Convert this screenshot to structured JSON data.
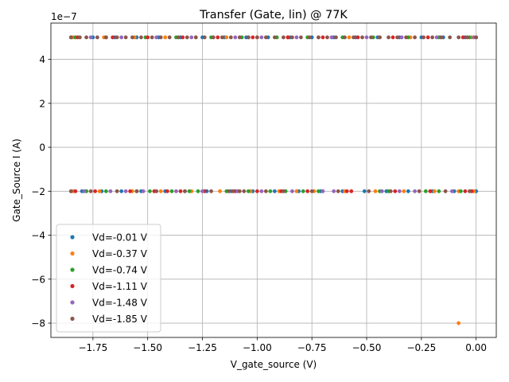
{
  "chart_data": {
    "type": "scatter",
    "title": "Transfer (Gate, lin) @ 77K",
    "xlabel": "V_gate_source (V)",
    "ylabel": "Gate_Source I (A)",
    "y_offset_label": "1e−7",
    "y_scale_exponent": -7,
    "xlim": [
      -1.942,
      0.092
    ],
    "ylim": [
      -8.65e-07,
      5.65e-07
    ],
    "grid": true,
    "legend_position": "lower-left",
    "x_ticks": [
      {
        "value": -1.75,
        "label": "−1.75"
      },
      {
        "value": -1.5,
        "label": "−1.50"
      },
      {
        "value": -1.25,
        "label": "−1.25"
      },
      {
        "value": -1.0,
        "label": "−1.00"
      },
      {
        "value": -0.75,
        "label": "−0.75"
      },
      {
        "value": -0.5,
        "label": "−0.50"
      },
      {
        "value": -0.25,
        "label": "−0.25"
      },
      {
        "value": 0.0,
        "label": "0.00"
      }
    ],
    "y_ticks": [
      {
        "value": 4e-07,
        "label": "4"
      },
      {
        "value": 2e-07,
        "label": "2"
      },
      {
        "value": 0,
        "label": "0"
      },
      {
        "value": -2e-07,
        "label": "−2"
      },
      {
        "value": -4e-07,
        "label": "−4"
      },
      {
        "value": -6e-07,
        "label": "−6"
      },
      {
        "value": -8e-07,
        "label": "−8"
      }
    ],
    "series": [
      {
        "name": "Vd=-0.01 V",
        "color": "#1f77b4",
        "points": [
          [
            -1.85,
            -2e-07
          ],
          [
            -1.8,
            -2e-07
          ],
          [
            -1.71,
            -2e-07
          ],
          [
            -1.62,
            -2e-07
          ],
          [
            -1.53,
            -2e-07
          ],
          [
            -1.42,
            -2e-07
          ],
          [
            -1.33,
            -2e-07
          ],
          [
            -1.23,
            -2e-07
          ],
          [
            -1.12,
            -2e-07
          ],
          [
            -1.02,
            -2e-07
          ],
          [
            -0.92,
            -2e-07
          ],
          [
            -0.81,
            -2e-07
          ],
          [
            -0.71,
            -2e-07
          ],
          [
            -0.61,
            -2e-07
          ],
          [
            -0.51,
            -2e-07
          ],
          [
            -0.41,
            -2e-07
          ],
          [
            -0.31,
            -2e-07
          ],
          [
            -0.2,
            -2e-07
          ],
          [
            -0.1,
            -2e-07
          ],
          [
            0.0,
            -2e-07
          ],
          [
            -1.85,
            5e-07
          ],
          [
            -1.75,
            5e-07
          ],
          [
            -1.65,
            5e-07
          ],
          [
            -1.55,
            5e-07
          ],
          [
            -1.45,
            5e-07
          ],
          [
            -1.35,
            5e-07
          ],
          [
            -1.25,
            5e-07
          ],
          [
            -1.15,
            5e-07
          ],
          [
            -1.05,
            5e-07
          ],
          [
            -0.95,
            5e-07
          ],
          [
            -0.85,
            5e-07
          ],
          [
            -0.75,
            5e-07
          ],
          [
            -0.65,
            5e-07
          ],
          [
            -0.55,
            5e-07
          ],
          [
            -0.45,
            5e-07
          ],
          [
            -0.35,
            5e-07
          ],
          [
            -0.25,
            5e-07
          ],
          [
            -0.15,
            5e-07
          ],
          [
            -0.05,
            5e-07
          ],
          [
            0.0,
            5e-07
          ]
        ]
      },
      {
        "name": "Vd=-0.37 V",
        "color": "#ff7f0e",
        "points": [
          [
            -1.84,
            -2e-07
          ],
          [
            -1.72,
            -2e-07
          ],
          [
            -1.57,
            -2e-07
          ],
          [
            -1.44,
            -2e-07
          ],
          [
            -1.3,
            -2e-07
          ],
          [
            -1.17,
            -2e-07
          ],
          [
            -1.03,
            -2e-07
          ],
          [
            -0.9,
            -2e-07
          ],
          [
            -0.82,
            -2e-07
          ],
          [
            -0.74,
            -2e-07
          ],
          [
            -0.6,
            -2e-07
          ],
          [
            -0.46,
            -2e-07
          ],
          [
            -0.33,
            -2e-07
          ],
          [
            -0.19,
            -2e-07
          ],
          [
            -0.08,
            -2e-07
          ],
          [
            -0.01,
            -2e-07
          ],
          [
            -0.08,
            -8e-07
          ],
          [
            -1.84,
            5e-07
          ],
          [
            -1.7,
            5e-07
          ],
          [
            -1.56,
            5e-07
          ],
          [
            -1.42,
            5e-07
          ],
          [
            -1.28,
            5e-07
          ],
          [
            -1.14,
            5e-07
          ],
          [
            -1.0,
            5e-07
          ],
          [
            -0.86,
            5e-07
          ],
          [
            -0.72,
            5e-07
          ],
          [
            -0.58,
            5e-07
          ],
          [
            -0.44,
            5e-07
          ],
          [
            -0.3,
            5e-07
          ],
          [
            -0.16,
            5e-07
          ],
          [
            -0.02,
            5e-07
          ]
        ]
      },
      {
        "name": "Vd=-0.74 V",
        "color": "#2ca02c",
        "points": [
          [
            -1.78,
            -2e-07
          ],
          [
            -1.69,
            -2e-07
          ],
          [
            -1.55,
            -2e-07
          ],
          [
            -1.49,
            -2e-07
          ],
          [
            -1.39,
            -2e-07
          ],
          [
            -1.31,
            -2e-07
          ],
          [
            -1.27,
            -2e-07
          ],
          [
            -1.14,
            -2e-07
          ],
          [
            -1.04,
            -2e-07
          ],
          [
            -0.94,
            -2e-07
          ],
          [
            -0.87,
            -2e-07
          ],
          [
            -0.79,
            -2e-07
          ],
          [
            -0.72,
            -2e-07
          ],
          [
            -0.44,
            -2e-07
          ],
          [
            -0.4,
            -2e-07
          ],
          [
            -0.23,
            -2e-07
          ],
          [
            -0.17,
            -2e-07
          ],
          [
            -0.07,
            -2e-07
          ],
          [
            -1.83,
            5e-07
          ],
          [
            -1.69,
            5e-07
          ],
          [
            -1.51,
            5e-07
          ],
          [
            -1.37,
            5e-07
          ],
          [
            -1.21,
            5e-07
          ],
          [
            -1.07,
            5e-07
          ],
          [
            -0.91,
            5e-07
          ],
          [
            -0.77,
            5e-07
          ],
          [
            -0.61,
            5e-07
          ],
          [
            -0.47,
            5e-07
          ],
          [
            -0.31,
            5e-07
          ],
          [
            -0.17,
            5e-07
          ],
          [
            -0.03,
            5e-07
          ]
        ]
      },
      {
        "name": "Vd=-1.11 V",
        "color": "#d62728",
        "points": [
          [
            -1.83,
            -2e-07
          ],
          [
            -1.74,
            -2e-07
          ],
          [
            -1.58,
            -2e-07
          ],
          [
            -1.47,
            -2e-07
          ],
          [
            -1.41,
            -2e-07
          ],
          [
            -1.35,
            -2e-07
          ],
          [
            -1.24,
            -2e-07
          ],
          [
            -1.1,
            -2e-07
          ],
          [
            -1.0,
            -2e-07
          ],
          [
            -0.89,
            -2e-07
          ],
          [
            -0.77,
            -2e-07
          ],
          [
            -0.59,
            -2e-07
          ],
          [
            -0.57,
            -2e-07
          ],
          [
            -0.37,
            -2e-07
          ],
          [
            -0.21,
            -2e-07
          ],
          [
            -0.05,
            -2e-07
          ],
          [
            -0.02,
            -2e-07
          ],
          [
            -1.82,
            5e-07
          ],
          [
            -1.66,
            5e-07
          ],
          [
            -1.5,
            5e-07
          ],
          [
            -1.34,
            5e-07
          ],
          [
            -1.18,
            5e-07
          ],
          [
            -1.02,
            5e-07
          ],
          [
            -0.86,
            5e-07
          ],
          [
            -0.7,
            5e-07
          ],
          [
            -0.54,
            5e-07
          ],
          [
            -0.38,
            5e-07
          ],
          [
            -0.22,
            5e-07
          ],
          [
            -0.06,
            5e-07
          ]
        ]
      },
      {
        "name": "Vd=-1.48 V",
        "color": "#9467bd",
        "points": [
          [
            -1.79,
            -2e-07
          ],
          [
            -1.67,
            -2e-07
          ],
          [
            -1.6,
            -2e-07
          ],
          [
            -1.52,
            -2e-07
          ],
          [
            -1.37,
            -2e-07
          ],
          [
            -1.25,
            -2e-07
          ],
          [
            -1.09,
            -2e-07
          ],
          [
            -0.98,
            -2e-07
          ],
          [
            -0.84,
            -2e-07
          ],
          [
            -0.7,
            -2e-07
          ],
          [
            -0.65,
            -2e-07
          ],
          [
            -0.43,
            -2e-07
          ],
          [
            -0.35,
            -2e-07
          ],
          [
            -0.28,
            -2e-07
          ],
          [
            -0.11,
            -2e-07
          ],
          [
            -1.76,
            5e-07
          ],
          [
            -1.62,
            5e-07
          ],
          [
            -1.46,
            5e-07
          ],
          [
            -1.3,
            5e-07
          ],
          [
            -1.1,
            5e-07
          ],
          [
            -1.04,
            5e-07
          ],
          [
            -0.98,
            5e-07
          ],
          [
            -0.82,
            5e-07
          ],
          [
            -0.66,
            5e-07
          ],
          [
            -0.5,
            5e-07
          ],
          [
            -0.34,
            5e-07
          ],
          [
            -0.18,
            5e-07
          ],
          [
            -0.01,
            5e-07
          ]
        ]
      },
      {
        "name": "Vd=-1.85 V",
        "color": "#8c564b",
        "points": [
          [
            -1.85,
            -2e-07
          ],
          [
            -1.76,
            -2e-07
          ],
          [
            -1.64,
            -2e-07
          ],
          [
            -1.55,
            -2e-07
          ],
          [
            -1.46,
            -2e-07
          ],
          [
            -1.33,
            -2e-07
          ],
          [
            -1.21,
            -2e-07
          ],
          [
            -1.13,
            -2e-07
          ],
          [
            -1.11,
            -2e-07
          ],
          [
            -1.08,
            -2e-07
          ],
          [
            -1.06,
            -2e-07
          ],
          [
            -0.96,
            -2e-07
          ],
          [
            -0.88,
            -2e-07
          ],
          [
            -0.75,
            -2e-07
          ],
          [
            -0.63,
            -2e-07
          ],
          [
            -0.49,
            -2e-07
          ],
          [
            -0.39,
            -2e-07
          ],
          [
            -0.26,
            -2e-07
          ],
          [
            -0.14,
            -2e-07
          ],
          [
            -0.03,
            -2e-07
          ],
          [
            -1.85,
            5e-07
          ],
          [
            -1.81,
            5e-07
          ],
          [
            -1.78,
            5e-07
          ],
          [
            -1.73,
            5e-07
          ],
          [
            -1.69,
            5e-07
          ],
          [
            -1.64,
            5e-07
          ],
          [
            -1.6,
            5e-07
          ],
          [
            -1.57,
            5e-07
          ],
          [
            -1.53,
            5e-07
          ],
          [
            -1.48,
            5e-07
          ],
          [
            -1.44,
            5e-07
          ],
          [
            -1.4,
            5e-07
          ],
          [
            -1.36,
            5e-07
          ],
          [
            -1.32,
            5e-07
          ],
          [
            -1.28,
            5e-07
          ],
          [
            -1.24,
            5e-07
          ],
          [
            -1.2,
            5e-07
          ],
          [
            -1.16,
            5e-07
          ],
          [
            -1.12,
            5e-07
          ],
          [
            -1.08,
            5e-07
          ],
          [
            -1.04,
            5e-07
          ],
          [
            -1.0,
            5e-07
          ],
          [
            -0.96,
            5e-07
          ],
          [
            -0.92,
            5e-07
          ],
          [
            -0.88,
            5e-07
          ],
          [
            -0.84,
            5e-07
          ],
          [
            -0.8,
            5e-07
          ],
          [
            -0.76,
            5e-07
          ],
          [
            -0.72,
            5e-07
          ],
          [
            -0.68,
            5e-07
          ],
          [
            -0.64,
            5e-07
          ],
          [
            -0.6,
            5e-07
          ],
          [
            -0.56,
            5e-07
          ],
          [
            -0.52,
            5e-07
          ],
          [
            -0.48,
            5e-07
          ],
          [
            -0.44,
            5e-07
          ],
          [
            -0.4,
            5e-07
          ],
          [
            -0.36,
            5e-07
          ],
          [
            -0.32,
            5e-07
          ],
          [
            -0.28,
            5e-07
          ],
          [
            -0.24,
            5e-07
          ],
          [
            -0.2,
            5e-07
          ],
          [
            -0.16,
            5e-07
          ],
          [
            -0.12,
            5e-07
          ],
          [
            -0.08,
            5e-07
          ],
          [
            -0.04,
            5e-07
          ],
          [
            0.0,
            5e-07
          ]
        ]
      }
    ]
  }
}
